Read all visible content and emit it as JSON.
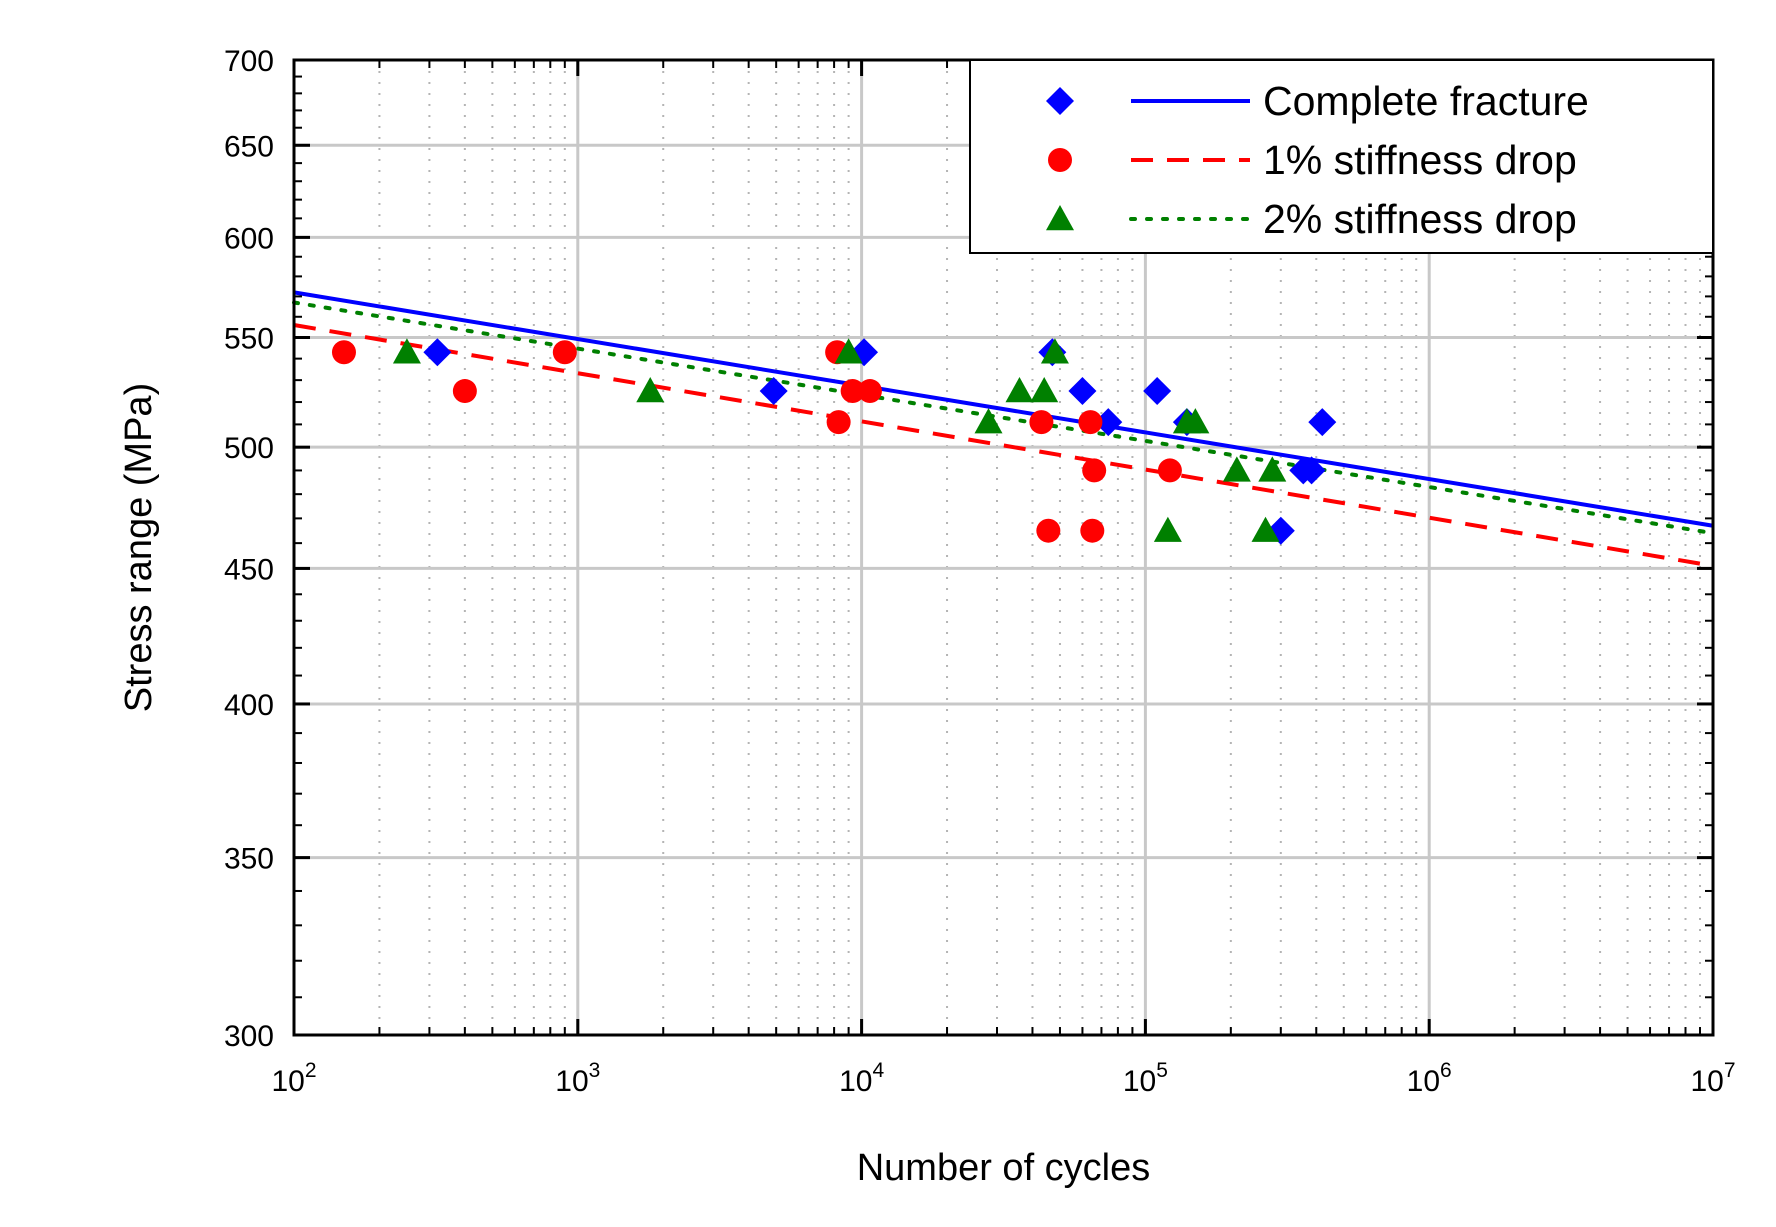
{
  "chart_data": {
    "type": "scatter",
    "title": "",
    "xlabel": "Number of cycles",
    "ylabel": "Stress range (MPa)",
    "xscale": "log",
    "yscale": "log",
    "xlim": [
      100,
      10000000
    ],
    "ylim": [
      300,
      700
    ],
    "xticks": [
      {
        "value": 100,
        "base": "10",
        "exp": "2"
      },
      {
        "value": 1000,
        "base": "10",
        "exp": "3"
      },
      {
        "value": 10000,
        "base": "10",
        "exp": "4"
      },
      {
        "value": 100000,
        "base": "10",
        "exp": "5"
      },
      {
        "value": 1000000,
        "base": "10",
        "exp": "6"
      },
      {
        "value": 10000000,
        "base": "10",
        "exp": "7"
      }
    ],
    "yticks": [
      {
        "value": 300,
        "label": "300"
      },
      {
        "value": 350,
        "label": "350"
      },
      {
        "value": 400,
        "label": "400"
      },
      {
        "value": 450,
        "label": "450"
      },
      {
        "value": 500,
        "label": "500"
      },
      {
        "value": 550,
        "label": "550"
      },
      {
        "value": 600,
        "label": "600"
      },
      {
        "value": 650,
        "label": "650"
      },
      {
        "value": 700,
        "label": "700"
      }
    ],
    "grid": true,
    "legend_position": "top-right",
    "series": [
      {
        "name": "Complete fracture",
        "marker": "diamond",
        "line": "solid",
        "color": "#0000ff",
        "points": [
          [
            320,
            543
          ],
          [
            4900,
            525
          ],
          [
            10200,
            543
          ],
          [
            47000,
            543
          ],
          [
            60000,
            525
          ],
          [
            74000,
            511
          ],
          [
            110000,
            525
          ],
          [
            140000,
            511
          ],
          [
            300000,
            465
          ],
          [
            360000,
            490
          ],
          [
            385000,
            490
          ],
          [
            420000,
            511
          ]
        ],
        "fit": [
          [
            100,
            572
          ],
          [
            10000000,
            467
          ]
        ]
      },
      {
        "name": "1% stiffness drop",
        "marker": "circle",
        "line": "dashed",
        "color": "#ff0000",
        "points": [
          [
            150,
            543
          ],
          [
            400,
            525
          ],
          [
            900,
            543
          ],
          [
            8200,
            543
          ],
          [
            8300,
            511
          ],
          [
            9300,
            525
          ],
          [
            10700,
            525
          ],
          [
            43000,
            511
          ],
          [
            45500,
            465
          ],
          [
            64000,
            511
          ],
          [
            65000,
            465
          ],
          [
            66000,
            490
          ],
          [
            122000,
            490
          ]
        ],
        "fit": [
          [
            100,
            556
          ],
          [
            10000000,
            451
          ]
        ]
      },
      {
        "name": "2% stiffness drop",
        "marker": "triangle",
        "line": "dotted",
        "color": "#008000",
        "points": [
          [
            250,
            543
          ],
          [
            1800,
            525
          ],
          [
            9000,
            543
          ],
          [
            28000,
            511
          ],
          [
            36000,
            525
          ],
          [
            44000,
            525
          ],
          [
            48000,
            543
          ],
          [
            120000,
            465
          ],
          [
            140000,
            511
          ],
          [
            150000,
            511
          ],
          [
            210000,
            490
          ],
          [
            265000,
            465
          ],
          [
            280000,
            490
          ]
        ],
        "fit": [
          [
            100,
            567
          ],
          [
            10000000,
            464
          ]
        ]
      }
    ]
  }
}
